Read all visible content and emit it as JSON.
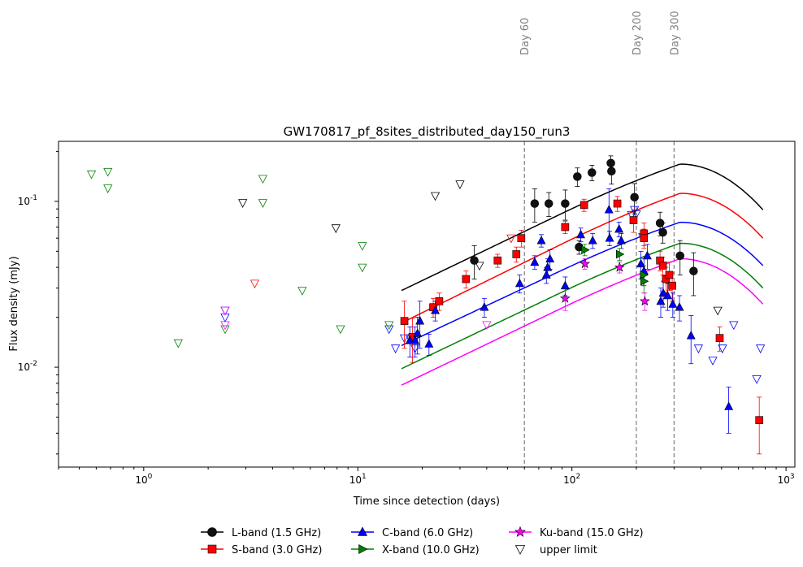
{
  "chart_data": {
    "type": "scatter",
    "title": "GW170817_pf_8sites_distributed_day150_run3",
    "xlabel": "Time since detection (days)",
    "ylabel": "Flux density (mJy)",
    "xscale": "log",
    "yscale": "log",
    "xlim": [
      0.4,
      1100
    ],
    "ylim": [
      0.0025,
      0.23
    ],
    "x_tick_labels": [
      {
        "v": 1,
        "label": "10^0"
      },
      {
        "v": 10,
        "label": "10^1"
      },
      {
        "v": 100,
        "label": "10^2"
      },
      {
        "v": 1000,
        "label": "10^3"
      }
    ],
    "y_tick_labels": [
      {
        "v": 0.01,
        "label": "10^-2"
      },
      {
        "v": 0.1,
        "label": "10^-1"
      }
    ],
    "vlines": [
      {
        "x": 60,
        "label": "Day 60"
      },
      {
        "x": 200,
        "label": "Day 200"
      },
      {
        "x": 300,
        "label": "Day 300"
      }
    ],
    "legend_position": "bottom-center, below plot",
    "series": [
      {
        "name": "L-band (1.5 GHz)",
        "color": "#000000",
        "marker": "circle",
        "model": {
          "t0": 16,
          "y0": 0.029,
          "tpeak": 320,
          "ypeak": 0.186,
          "tend": 780,
          "yend": 0.089
        },
        "points": [
          [
            35,
            0.044,
            0.01
          ],
          [
            67,
            0.097,
            0.022
          ],
          [
            78,
            0.097,
            0.016
          ],
          [
            93,
            0.097,
            0.02
          ],
          [
            106,
            0.141,
            0.018
          ],
          [
            108,
            0.053,
            0.005
          ],
          [
            124,
            0.149,
            0.016
          ],
          [
            153,
            0.152,
            0.025
          ],
          [
            152,
            0.17,
            0.018
          ],
          [
            196,
            0.106,
            0.022
          ],
          [
            258,
            0.074,
            0.012
          ],
          [
            266,
            0.065,
            0.009
          ],
          [
            320,
            0.047,
            0.011
          ],
          [
            370,
            0.038,
            0.011
          ]
        ]
      },
      {
        "name": "S-band (3.0 GHz)",
        "color": "#ff0000",
        "marker": "square",
        "model": {
          "t0": 16,
          "y0": 0.0185,
          "tpeak": 320,
          "ypeak": 0.124,
          "tend": 780,
          "yend": 0.06
        },
        "points": [
          [
            16.5,
            0.019,
            0.006
          ],
          [
            18,
            0.0152,
            0.0045
          ],
          [
            22.5,
            0.023,
            0.003
          ],
          [
            24,
            0.025,
            0.003
          ],
          [
            32,
            0.034,
            0.004
          ],
          [
            45,
            0.044,
            0.004
          ],
          [
            55,
            0.048,
            0.005
          ],
          [
            58,
            0.06,
            0.007
          ],
          [
            93,
            0.07,
            0.006
          ],
          [
            114,
            0.095,
            0.008
          ],
          [
            163,
            0.097,
            0.01
          ],
          [
            194,
            0.077,
            0.012
          ],
          [
            217,
            0.064,
            0.01
          ],
          [
            217,
            0.06,
            0.008
          ],
          [
            258,
            0.044,
            0.006
          ],
          [
            266,
            0.041,
            0.005
          ],
          [
            275,
            0.034,
            0.006
          ],
          [
            285,
            0.036,
            0.007
          ],
          [
            294,
            0.031,
            0.006
          ],
          [
            490,
            0.015,
            0.0025
          ],
          [
            750,
            0.0048,
            0.0018
          ]
        ]
      },
      {
        "name": "C-band (6.0 GHz)",
        "color": "#0000ff",
        "marker": "triangle-up",
        "model": {
          "t0": 16,
          "y0": 0.0135,
          "tpeak": 320,
          "ypeak": 0.083,
          "tend": 780,
          "yend": 0.041
        },
        "points": [
          [
            17.5,
            0.0145,
            0.003
          ],
          [
            18.5,
            0.0145,
            0.003
          ],
          [
            19,
            0.016,
            0.004
          ],
          [
            19.5,
            0.019,
            0.006
          ],
          [
            21.5,
            0.0138,
            0.002
          ],
          [
            23,
            0.022,
            0.003
          ],
          [
            39,
            0.023,
            0.003
          ],
          [
            57,
            0.032,
            0.004
          ],
          [
            67,
            0.043,
            0.004
          ],
          [
            72,
            0.058,
            0.005
          ],
          [
            76,
            0.036,
            0.004
          ],
          [
            77,
            0.04,
            0.005
          ],
          [
            79,
            0.045,
            0.006
          ],
          [
            93,
            0.031,
            0.004
          ],
          [
            110,
            0.063,
            0.006
          ],
          [
            125,
            0.058,
            0.006
          ],
          [
            149,
            0.089,
            0.03
          ],
          [
            150,
            0.06,
            0.006
          ],
          [
            166,
            0.068,
            0.007
          ],
          [
            170,
            0.058,
            0.006
          ],
          [
            210,
            0.042,
            0.008
          ],
          [
            217,
            0.038,
            0.007
          ],
          [
            225,
            0.047,
            0.008
          ],
          [
            260,
            0.025,
            0.005
          ],
          [
            267,
            0.028,
            0.005
          ],
          [
            280,
            0.027,
            0.005
          ],
          [
            296,
            0.024,
            0.004
          ],
          [
            318,
            0.023,
            0.004
          ],
          [
            360,
            0.0155,
            0.005
          ],
          [
            540,
            0.0058,
            0.0018
          ]
        ]
      },
      {
        "name": "X-band (10.0 GHz)",
        "color": "#008000",
        "marker": "triangle-right",
        "model": {
          "t0": 16,
          "y0": 0.0098,
          "tpeak": 320,
          "ypeak": 0.062,
          "tend": 780,
          "yend": 0.03
        },
        "points": [
          [
            115,
            0.051,
            0.004
          ],
          [
            167,
            0.048,
            0.004
          ],
          [
            216,
            0.036,
            0.005
          ],
          [
            217,
            0.033,
            0.005
          ]
        ]
      },
      {
        "name": "Ku-band (15.0 GHz)",
        "color": "#ff00ff",
        "marker": "star",
        "model": {
          "t0": 16,
          "y0": 0.0078,
          "tpeak": 320,
          "ypeak": 0.05,
          "tend": 780,
          "yend": 0.024
        },
        "points": [
          [
            93,
            0.026,
            0.004
          ],
          [
            115,
            0.042,
            0.003
          ],
          [
            167,
            0.04,
            0.003
          ],
          [
            219,
            0.025,
            0.003
          ]
        ]
      }
    ],
    "upper_limits": [
      {
        "band": "L-band (1.5 GHz)",
        "color": "#000000",
        "points": [
          [
            2.9,
            0.098
          ],
          [
            7.9,
            0.069
          ],
          [
            23,
            0.108
          ],
          [
            30,
            0.127
          ],
          [
            37,
            0.041
          ],
          [
            480,
            0.022
          ]
        ]
      },
      {
        "band": "S-band (3.0 GHz)",
        "color": "#ff0000",
        "points": [
          [
            3.3,
            0.032
          ],
          [
            52,
            0.06
          ]
        ]
      },
      {
        "band": "C-band (6.0 GHz)",
        "color": "#0000ff",
        "points": [
          [
            2.4,
            0.022
          ],
          [
            2.4,
            0.02
          ],
          [
            14,
            0.017
          ],
          [
            15,
            0.013
          ],
          [
            16.5,
            0.015
          ],
          [
            17.5,
            0.015
          ],
          [
            18.5,
            0.013
          ],
          [
            190,
            0.083
          ],
          [
            196,
            0.089
          ],
          [
            200,
            0.084
          ],
          [
            214,
            0.061
          ],
          [
            390,
            0.013
          ],
          [
            455,
            0.011
          ],
          [
            505,
            0.013
          ],
          [
            570,
            0.018
          ],
          [
            730,
            0.0085
          ],
          [
            760,
            0.013
          ]
        ]
      },
      {
        "band": "X-band (10.0 GHz)",
        "color": "#008000",
        "points": [
          [
            0.57,
            0.146
          ],
          [
            0.68,
            0.151
          ],
          [
            0.68,
            0.12
          ],
          [
            1.45,
            0.014
          ],
          [
            2.4,
            0.017
          ],
          [
            3.6,
            0.137
          ],
          [
            3.6,
            0.098
          ],
          [
            5.5,
            0.029
          ],
          [
            8.3,
            0.017
          ],
          [
            10.5,
            0.054
          ],
          [
            10.5,
            0.04
          ],
          [
            14,
            0.018
          ]
        ]
      },
      {
        "band": "Ku-band (15.0 GHz)",
        "color": "#ff00ff",
        "points": [
          [
            2.4,
            0.022
          ],
          [
            2.4,
            0.018
          ],
          [
            40,
            0.018
          ]
        ]
      }
    ],
    "legend": [
      {
        "label": "L-band (1.5 GHz)",
        "color": "#000000",
        "marker": "circle"
      },
      {
        "label": "S-band (3.0 GHz)",
        "color": "#ff0000",
        "marker": "square"
      },
      {
        "label": "C-band (6.0 GHz)",
        "color": "#0000ff",
        "marker": "triangle-up"
      },
      {
        "label": "X-band (10.0 GHz)",
        "color": "#008000",
        "marker": "triangle-right"
      },
      {
        "label": "Ku-band (15.0 GHz)",
        "color": "#ff00ff",
        "marker": "star"
      },
      {
        "label": "upper limit",
        "color": "#000000",
        "marker": "triangle-down-open"
      }
    ]
  }
}
